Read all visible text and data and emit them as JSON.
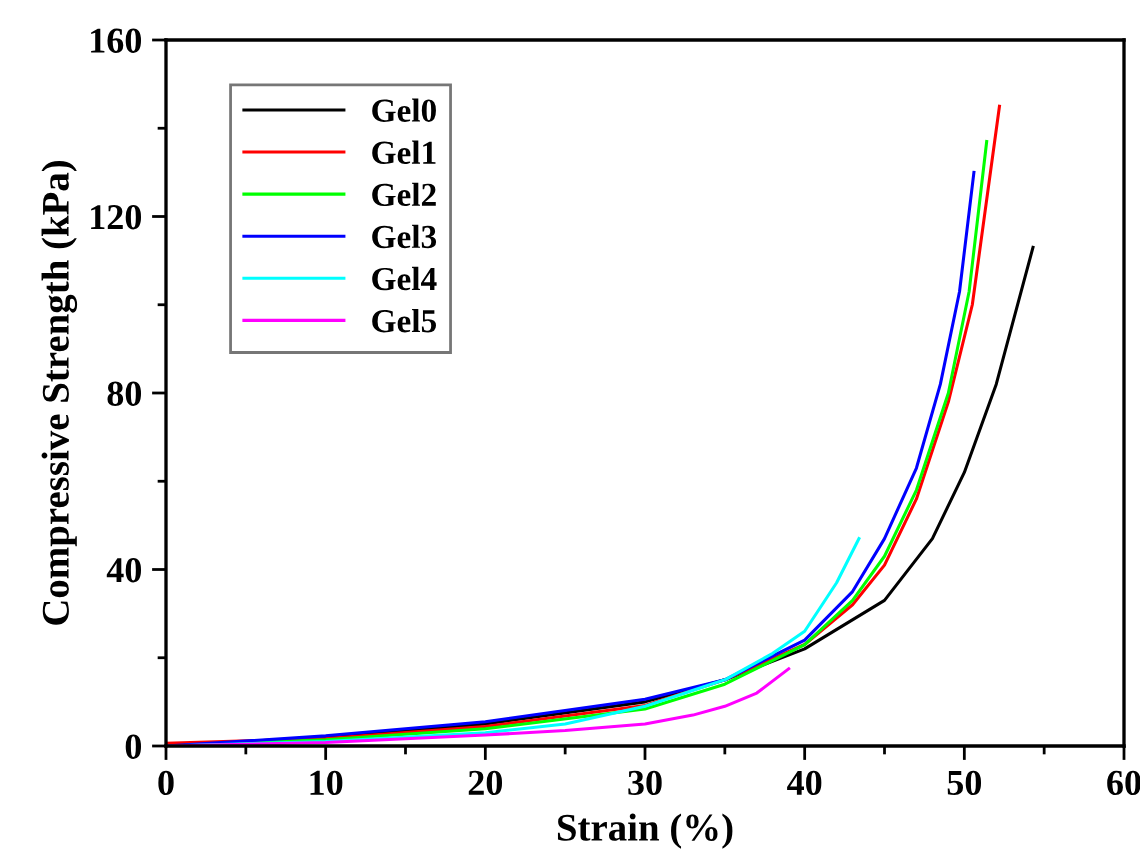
{
  "chart_data": {
    "type": "line",
    "xlabel": "Strain (%)",
    "ylabel": "Compressive Strength (kPa)",
    "xlim": [
      0,
      60
    ],
    "ylim": [
      0,
      160
    ],
    "xticks": [
      0,
      {
        "value": 5,
        "label": null
      },
      10,
      {
        "value": 15,
        "label": null
      },
      20,
      {
        "value": 25,
        "label": null
      },
      30,
      {
        "value": 35,
        "label": null
      },
      40,
      {
        "value": 45,
        "label": null
      },
      50,
      {
        "value": 55,
        "label": null
      },
      60
    ],
    "yticks": [
      0,
      {
        "value": 20,
        "label": null
      },
      40,
      {
        "value": 60,
        "label": null
      },
      80,
      {
        "value": 100,
        "label": null
      },
      120,
      {
        "value": 140,
        "label": null
      },
      160
    ],
    "grid": false,
    "legend": "top left",
    "marker": "none",
    "line_style": "solid",
    "series": [
      {
        "name": "Gel0",
        "color": "#000000",
        "x": [
          0,
          10,
          20,
          30,
          35,
          40,
          45,
          48,
          50,
          52,
          54.3
        ],
        "values": [
          0,
          2,
          5,
          10,
          15,
          22,
          33,
          47,
          62,
          82,
          113
        ]
      },
      {
        "name": "Gel1",
        "color": "#ff0000",
        "x": [
          0,
          10,
          20,
          30,
          35,
          40,
          43,
          45,
          47,
          49,
          50.5,
          52.2
        ],
        "values": [
          0.6,
          1.7,
          4.4,
          9.2,
          15,
          23,
          32,
          41,
          56,
          78,
          100,
          145
        ]
      },
      {
        "name": "Gel2",
        "color": "#00ff00",
        "x": [
          0,
          10,
          20,
          30,
          35,
          40,
          43,
          45,
          47,
          49,
          50.3,
          51.4
        ],
        "values": [
          0,
          1.4,
          3.9,
          8.4,
          14,
          23,
          33,
          43,
          58,
          80,
          103,
          137
        ]
      },
      {
        "name": "Gel3",
        "color": "#0000ff",
        "x": [
          0,
          10,
          20,
          30,
          35,
          40,
          43,
          45,
          47,
          48.5,
          49.7,
          50.6
        ],
        "values": [
          0,
          2.3,
          5.5,
          10.6,
          15,
          24,
          35,
          47,
          63,
          82,
          103,
          130
        ]
      },
      {
        "name": "Gel4",
        "color": "#00ffff",
        "x": [
          0,
          10,
          20,
          25,
          30,
          35,
          38,
          40,
          42,
          43.4
        ],
        "values": [
          0,
          1,
          3,
          5,
          9,
          15,
          21,
          26,
          37,
          47
        ]
      },
      {
        "name": "Gel5",
        "color": "#ff00ff",
        "x": [
          0,
          10,
          20,
          25,
          30,
          33,
          35,
          37,
          39
        ],
        "values": [
          0,
          0.8,
          2.5,
          3.5,
          5,
          7,
          9,
          12,
          17.5
        ]
      }
    ]
  }
}
